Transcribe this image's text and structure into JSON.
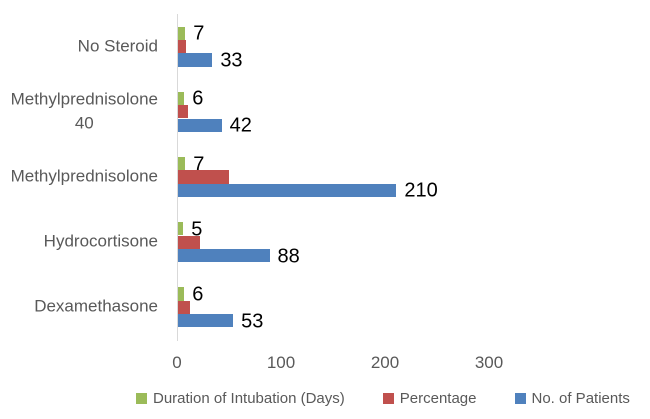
{
  "chart_data": {
    "type": "bar",
    "orientation": "horizontal",
    "title": "",
    "categories": [
      "No Steroid",
      "Methylprednisolone 40",
      "Methylprednisolone",
      "Hydrocortisone",
      "Dexamethasone"
    ],
    "category_label_lines": [
      [
        "No Steroid"
      ],
      [
        "Methylprednisolone",
        "40"
      ],
      [
        "Methylprednisolone"
      ],
      [
        "Hydrocortisone"
      ],
      [
        "Dexamethasone"
      ]
    ],
    "series": [
      {
        "name": "Duration of Intubation (Days)",
        "color": "#9BBB59",
        "values": [
          7,
          6,
          7,
          5,
          6
        ],
        "data_labels": [
          "7",
          "6",
          "7",
          "5",
          "6"
        ]
      },
      {
        "name": "Percentage",
        "color": "#C0504D",
        "values": [
          8,
          10,
          49,
          21,
          12
        ],
        "data_labels": null,
        "values_estimated_from_bar_length": true
      },
      {
        "name": "No. of Patients",
        "color": "#4F81BD",
        "values": [
          33,
          42,
          210,
          88,
          53
        ],
        "data_labels": [
          "33",
          "42",
          "210",
          "88",
          "53"
        ]
      }
    ],
    "x_axis": {
      "tick_labels": [
        "0",
        "100",
        "200",
        "300"
      ],
      "tick_values": [
        0,
        100,
        200,
        300
      ],
      "min": 0,
      "max": 300,
      "gridlines": false
    },
    "legend": {
      "position": "bottom",
      "entries": [
        "Duration of Intubation (Days)",
        "Percentage",
        "No. of Patients"
      ]
    }
  },
  "style_colors": {
    "background": "#FFFFFF",
    "axis_line": "#D9D9D9",
    "category_label": "#595959",
    "tick_label": "#595959",
    "legend_label": "#595959",
    "data_label": "#000000"
  }
}
